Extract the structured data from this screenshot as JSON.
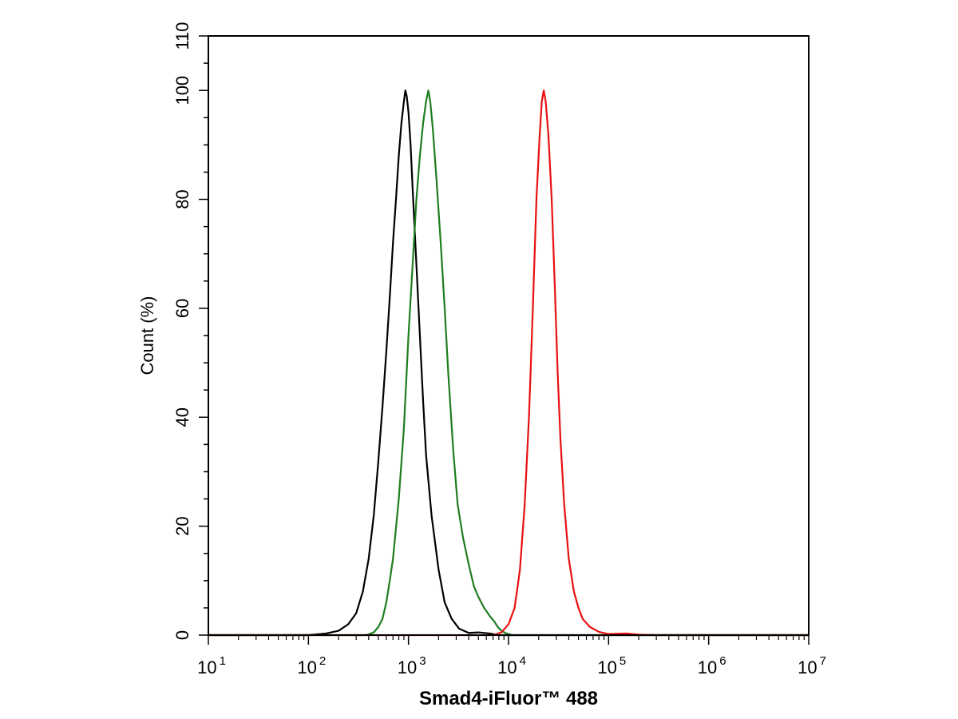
{
  "chart_data": {
    "type": "line",
    "title": "",
    "xlabel": "Smad4-iFluor™ 488",
    "ylabel": "Count  (%)",
    "x_scale": "log",
    "xlim": [
      10,
      10000000
    ],
    "ylim": [
      0,
      110
    ],
    "grid": false,
    "legend": "none",
    "x_ticks": [
      {
        "value": 10,
        "base": "10",
        "exp": "1"
      },
      {
        "value": 100,
        "base": "10",
        "exp": "2"
      },
      {
        "value": 1000,
        "base": "10",
        "exp": "3"
      },
      {
        "value": 10000,
        "base": "10",
        "exp": "4"
      },
      {
        "value": 100000,
        "base": "10",
        "exp": "5"
      },
      {
        "value": 1000000,
        "base": "10",
        "exp": "6"
      },
      {
        "value": 10000000,
        "base": "10",
        "exp": "7"
      }
    ],
    "y_ticks": [
      0,
      20,
      40,
      60,
      80,
      100,
      110
    ],
    "series": [
      {
        "color": "#000000",
        "points": [
          [
            10,
            0
          ],
          [
            100,
            0
          ],
          [
            150,
            0.3
          ],
          [
            200,
            0.8
          ],
          [
            250,
            2
          ],
          [
            300,
            4
          ],
          [
            350,
            8
          ],
          [
            400,
            14
          ],
          [
            450,
            22
          ],
          [
            500,
            32
          ],
          [
            550,
            42
          ],
          [
            600,
            52
          ],
          [
            650,
            62
          ],
          [
            700,
            72
          ],
          [
            750,
            80
          ],
          [
            800,
            88
          ],
          [
            850,
            94
          ],
          [
            900,
            98
          ],
          [
            930,
            100
          ],
          [
            960,
            99
          ],
          [
            1000,
            96
          ],
          [
            1050,
            90
          ],
          [
            1100,
            82
          ],
          [
            1200,
            68
          ],
          [
            1300,
            55
          ],
          [
            1400,
            43
          ],
          [
            1500,
            33
          ],
          [
            1700,
            22
          ],
          [
            2000,
            12
          ],
          [
            2300,
            6
          ],
          [
            2700,
            3
          ],
          [
            3200,
            1.2
          ],
          [
            4000,
            0.4
          ],
          [
            5000,
            0.5
          ],
          [
            6500,
            0.3
          ],
          [
            8000,
            0
          ],
          [
            10000000,
            0
          ]
        ]
      },
      {
        "color": "#1e7d1e",
        "points": [
          [
            10,
            0
          ],
          [
            380,
            0
          ],
          [
            450,
            0.5
          ],
          [
            500,
            1.5
          ],
          [
            550,
            3
          ],
          [
            600,
            6
          ],
          [
            650,
            10
          ],
          [
            700,
            14
          ],
          [
            800,
            25
          ],
          [
            900,
            38
          ],
          [
            1000,
            55
          ],
          [
            1100,
            68
          ],
          [
            1200,
            80
          ],
          [
            1300,
            88
          ],
          [
            1400,
            94
          ],
          [
            1500,
            98
          ],
          [
            1580,
            100
          ],
          [
            1650,
            98
          ],
          [
            1750,
            93
          ],
          [
            1900,
            84
          ],
          [
            2100,
            72
          ],
          [
            2300,
            60
          ],
          [
            2500,
            48
          ],
          [
            2800,
            34
          ],
          [
            3100,
            24
          ],
          [
            3500,
            18
          ],
          [
            4000,
            13
          ],
          [
            4500,
            9
          ],
          [
            5000,
            7
          ],
          [
            5700,
            5
          ],
          [
            6500,
            3.5
          ],
          [
            7200,
            2.5
          ],
          [
            7800,
            1.5
          ],
          [
            8500,
            0.8
          ],
          [
            9500,
            0.3
          ],
          [
            11000,
            0
          ],
          [
            10000000,
            0
          ]
        ]
      },
      {
        "color": "#e81010",
        "points": [
          [
            10,
            0
          ],
          [
            7000,
            0
          ],
          [
            8500,
            0.5
          ],
          [
            10000,
            2
          ],
          [
            11500,
            5
          ],
          [
            13000,
            12
          ],
          [
            14500,
            24
          ],
          [
            16000,
            40
          ],
          [
            17500,
            60
          ],
          [
            19000,
            80
          ],
          [
            20500,
            92
          ],
          [
            21500,
            98
          ],
          [
            22500,
            100
          ],
          [
            23500,
            98
          ],
          [
            25000,
            92
          ],
          [
            27000,
            80
          ],
          [
            29000,
            64
          ],
          [
            31000,
            48
          ],
          [
            33000,
            36
          ],
          [
            36000,
            24
          ],
          [
            40000,
            14
          ],
          [
            45000,
            8
          ],
          [
            50000,
            5
          ],
          [
            55000,
            3
          ],
          [
            65000,
            1.5
          ],
          [
            80000,
            0.6
          ],
          [
            100000,
            0.2
          ],
          [
            150000,
            0.3
          ],
          [
            200000,
            0.1
          ],
          [
            300000,
            0
          ],
          [
            10000000,
            0
          ]
        ]
      }
    ]
  }
}
